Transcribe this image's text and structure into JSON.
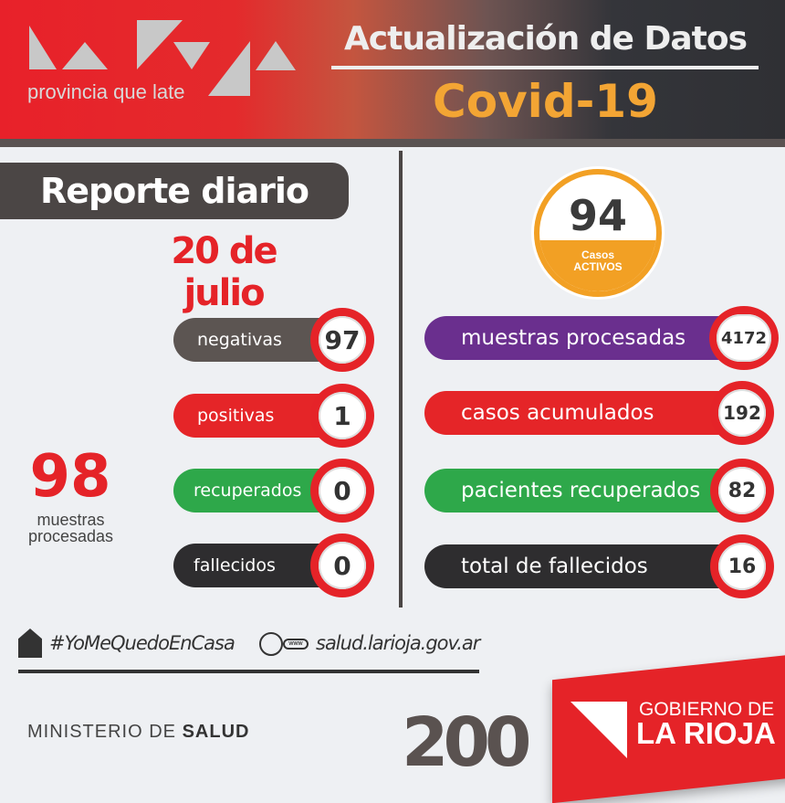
{
  "header": {
    "logo_text": "La Rioja",
    "tagline": "provincia que late",
    "title": "Actualización de Datos",
    "subtitle": "Covid-19"
  },
  "report": {
    "title": "Reporte diario",
    "date": "20 de julio"
  },
  "daily": {
    "items": [
      {
        "label": "negativas",
        "value": "97",
        "color": "#5c5552"
      },
      {
        "label": "positivas",
        "value": "1",
        "color": "#e52528"
      },
      {
        "label": "recuperados",
        "value": "0",
        "color": "#2ea84a"
      },
      {
        "label": "fallecidos",
        "value": "0",
        "color": "#2e2d2f"
      }
    ],
    "total_value": "98",
    "total_label": "muestras procesadas"
  },
  "cumulative": {
    "active_value": "94",
    "active_label_1": "Casos",
    "active_label_2": "ACTIVOS",
    "items": [
      {
        "label": "muestras procesadas",
        "value": "4172",
        "color": "#6a2f8e"
      },
      {
        "label": "casos acumulados",
        "value": "192",
        "color": "#e52528"
      },
      {
        "label": "pacientes recuperados",
        "value": "82",
        "color": "#2ea84a"
      },
      {
        "label": "total de fallecidos",
        "value": "16",
        "color": "#2e2d2f"
      }
    ]
  },
  "footer": {
    "hashtag": "#YoMeQuedoEnCasa",
    "website": "salud.larioja.gov.ar",
    "ministry_light": "MINISTERIO DE",
    "ministry_bold": "SALUD",
    "bicentenary": "200",
    "gov_line1": "GOBIERNO DE",
    "gov_line2": "LA RIOJA"
  }
}
